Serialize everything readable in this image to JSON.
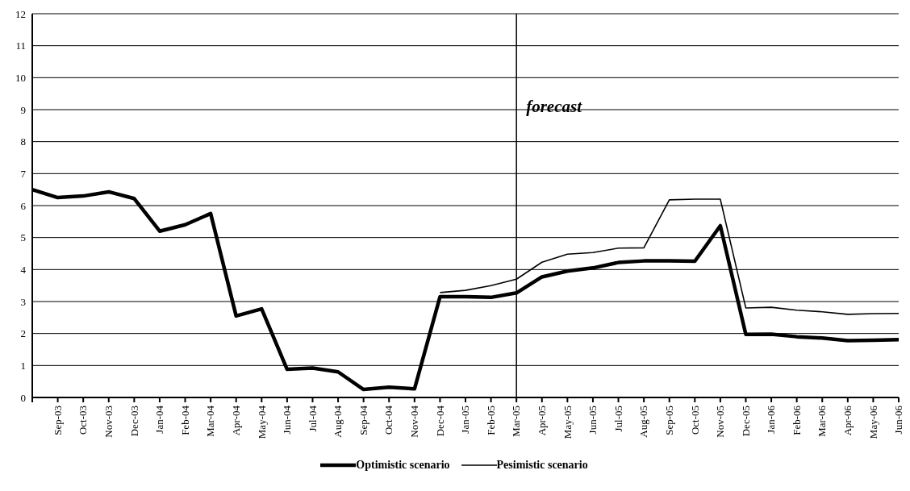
{
  "chart_data": {
    "type": "line",
    "categories": [
      null,
      "Sep-03",
      "Oct-03",
      "Nov-03",
      "Dec-03",
      "Jan-04",
      "Feb-04",
      "Mar-04",
      "Apr-04",
      "May-04",
      "Jun-04",
      "Jul-04",
      "Aug-04",
      "Sep-04",
      "Oct-04",
      "Nov-04",
      "Dec-04",
      "Jan-05",
      "Feb-05",
      "Mar-05",
      "Apr-05",
      "May-05",
      "Jun-05",
      "Jul-05",
      "Aug-05",
      "Sep-05",
      "Oct-05",
      "Nov-05",
      "Dec-05",
      "Jan-06",
      "Feb-06",
      "Mar-06",
      "Apr-06",
      "May-06",
      "Jun-06"
    ],
    "series": [
      {
        "name": "Optimistic scenario",
        "color": "#000000",
        "values": [
          6.5,
          6.25,
          6.3,
          6.43,
          6.22,
          5.2,
          5.4,
          5.75,
          2.55,
          2.77,
          0.88,
          0.92,
          0.8,
          0.25,
          0.32,
          0.27,
          3.15,
          3.15,
          3.13,
          3.27,
          3.77,
          3.95,
          4.05,
          4.22,
          4.27,
          4.27,
          4.26,
          5.37,
          1.97,
          1.98,
          1.9,
          1.86,
          1.78,
          1.79,
          1.81
        ]
      },
      {
        "name": "Pesimistic scenario",
        "color": "#000000",
        "values": [
          null,
          null,
          null,
          null,
          null,
          null,
          null,
          null,
          null,
          null,
          null,
          null,
          null,
          null,
          null,
          null,
          3.28,
          3.35,
          3.5,
          3.7,
          4.23,
          4.48,
          4.53,
          4.67,
          4.68,
          6.18,
          6.2,
          6.2,
          2.8,
          2.82,
          2.73,
          2.68,
          2.6,
          2.62,
          2.63
        ]
      }
    ],
    "ylim": [
      0,
      12
    ],
    "yticks": [
      0,
      1,
      2,
      3,
      4,
      5,
      6,
      7,
      8,
      9,
      10,
      11,
      12
    ],
    "ref_lines": [
      {
        "axis": "x",
        "value": "Mar-05",
        "label": "forecast",
        "color": "#000000"
      }
    ],
    "grid": "y",
    "legend": "bottom",
    "marker": "none",
    "line_style": "solid"
  }
}
